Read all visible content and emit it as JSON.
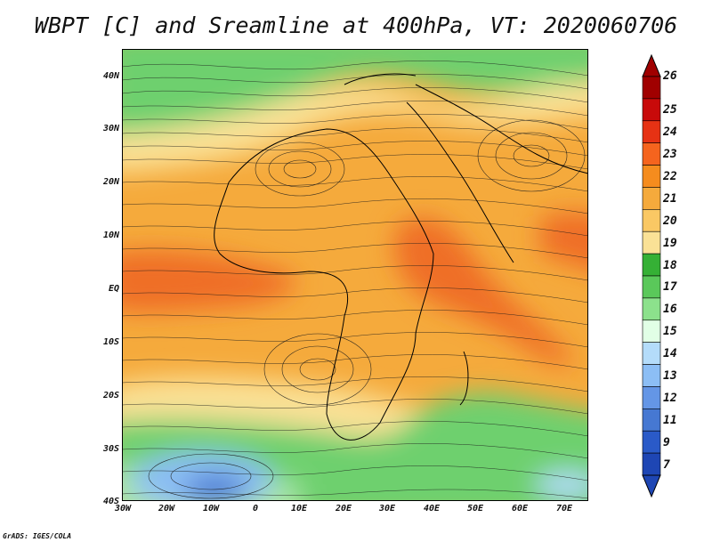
{
  "title": "WBPT [C] and Sreamline at 400hPa, VT: 2020060706",
  "footer": "GrADS: IGES/COLA",
  "map": {
    "lat_labels": [
      "40N",
      "30N",
      "20N",
      "10N",
      "EQ",
      "10S",
      "20S",
      "30S",
      "40S"
    ],
    "lon_labels": [
      "30W",
      "20W",
      "10W",
      "0",
      "10E",
      "20E",
      "30E",
      "40E",
      "50E",
      "60E",
      "70E"
    ],
    "lat_range": [
      -40,
      44
    ],
    "lon_range": [
      -30,
      76
    ]
  },
  "legend": {
    "values": [
      "26",
      "25",
      "24",
      "23",
      "22",
      "21",
      "20",
      "19",
      "18",
      "17",
      "16",
      "15",
      "14",
      "13",
      "12",
      "11",
      "9",
      "7"
    ],
    "colors": [
      "#a00000",
      "#c80a0a",
      "#e63214",
      "#f5641e",
      "#f58c1e",
      "#f5aa3c",
      "#fac864",
      "#fae196",
      "#35b035",
      "#5ac85a",
      "#8ce18c",
      "#e1ffe6",
      "#b4dcfa",
      "#8cbef5",
      "#6496e6",
      "#4678d2",
      "#2a5ac8",
      "#1e46b4"
    ]
  }
}
